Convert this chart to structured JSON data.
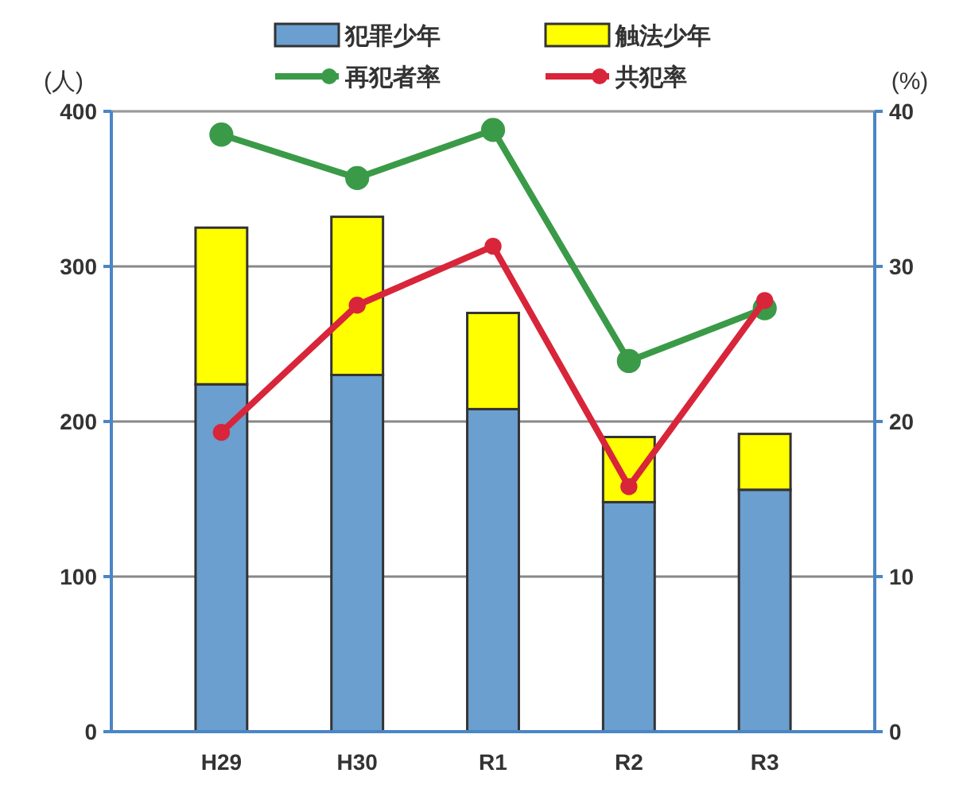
{
  "chart_data": {
    "type": "bar",
    "stacked": true,
    "categories": [
      "H29",
      "H30",
      "R1",
      "R2",
      "R3"
    ],
    "series": [
      {
        "name": "犯罪少年",
        "color": "#6a9fcf",
        "values": [
          224,
          230,
          208,
          148,
          156
        ]
      },
      {
        "name": "触法少年",
        "color": "#ffff00",
        "values": [
          101,
          102,
          62,
          42,
          36
        ]
      },
      {
        "name": "再犯者率",
        "type": "line",
        "axis": "y2",
        "color": "#3a9a48",
        "values": [
          38.5,
          35.7,
          38.8,
          23.9,
          27.3
        ]
      },
      {
        "name": "共犯率",
        "type": "line",
        "axis": "y2",
        "color": "#d8253a",
        "values": [
          19.3,
          27.5,
          31.3,
          15.8,
          27.8
        ]
      }
    ],
    "ylabel": "(人)",
    "y2label": "(%)",
    "ylim": [
      0,
      400
    ],
    "yticks": [
      0,
      100,
      200,
      300,
      400
    ],
    "y2lim": [
      0,
      40
    ],
    "y2ticks": [
      0,
      10,
      20,
      30,
      40
    ],
    "grid": "y",
    "legend": "top",
    "marker": "circle"
  }
}
